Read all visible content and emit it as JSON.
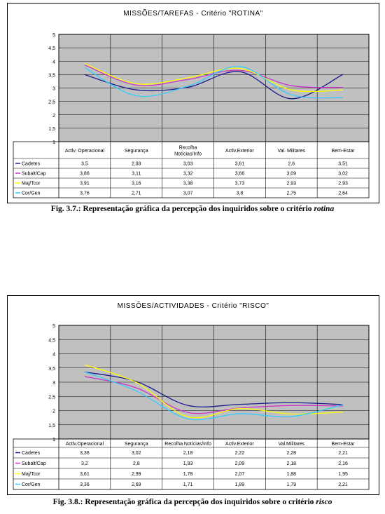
{
  "figures": [
    {
      "caption": {
        "prefix": "Fig. 3.7.: Representação gráfica da percepção dos inquiridos sobre o critério ",
        "italic": "rotina"
      }
    },
    {
      "caption": {
        "prefix": "Fig. 3.8.: Representação gráfica da percepção dos inquiridos sobre o critério ",
        "italic": "risco"
      }
    }
  ],
  "chart_data": [
    {
      "type": "line",
      "title": "MISSÕES/TAREFAS - Critério \"ROTINA\"",
      "categories": [
        "Actlv. Operacional",
        "Segurança",
        "Recolha Notícias/Info",
        "Actlv.Exterior",
        "Val. Militares",
        "Bem-Estar"
      ],
      "category_lines": [
        [
          "Actlv. Operacional"
        ],
        [
          "Segurança"
        ],
        [
          "Recolha",
          "Notícias/Info"
        ],
        [
          "Actlv.Exterior"
        ],
        [
          "Val. Militares"
        ],
        [
          "Bem-Estar"
        ]
      ],
      "series": [
        {
          "name": "Cadetes",
          "color": "#1a1a8c",
          "values": [
            3.5,
            2.93,
            3.03,
            3.61,
            2.6,
            3.51
          ],
          "labels": [
            "3,5",
            "2,93",
            "3,03",
            "3,61",
            "2,6",
            "3,51"
          ]
        },
        {
          "name": "Subalt/Cap",
          "color": "#cc33cc",
          "values": [
            3.86,
            3.11,
            3.32,
            3.66,
            3.09,
            3.02
          ],
          "labels": [
            "3,86",
            "3,11",
            "3,32",
            "3,66",
            "3,09",
            "3,02"
          ]
        },
        {
          "name": "Maj/Tcor",
          "color": "#ffff00",
          "values": [
            3.91,
            3.16,
            3.38,
            3.73,
            2.93,
            2.93
          ],
          "labels": [
            "3,91",
            "3,16",
            "3,38",
            "3,73",
            "2,93",
            "2,93"
          ]
        },
        {
          "name": "Cor/Gen",
          "color": "#33ccff",
          "values": [
            3.76,
            2.71,
            3.07,
            3.8,
            2.75,
            2.64
          ],
          "labels": [
            "3,76",
            "2,71",
            "3,07",
            "3,8",
            "2,75",
            "2,64"
          ]
        }
      ],
      "yticks": [
        "1",
        "1,5",
        "2",
        "2,5",
        "3",
        "3,5",
        "4",
        "4,5",
        "5"
      ],
      "ylim": [
        1,
        5
      ],
      "grid": true,
      "plot_background": "#c0c0c0"
    },
    {
      "type": "line",
      "title": "MISSÕES/ACTIVIDADES - Critério \"RISCO\"",
      "categories": [
        "Actlv.Operacional",
        "Segurança",
        "Recolha Notícias/Info",
        "Actlv.Exterior",
        "Val.Militares",
        "Bem-Estar"
      ],
      "category_lines": [
        [
          "Actlv.Operacional"
        ],
        [
          "Segurança"
        ],
        [
          "Recolha Notícias/Info"
        ],
        [
          "Actlv.Exterior"
        ],
        [
          "Val.Militares"
        ],
        [
          "Bem-Estar"
        ]
      ],
      "series": [
        {
          "name": "Cadetes",
          "color": "#1a1a8c",
          "values": [
            3.36,
            3.02,
            2.18,
            2.22,
            2.28,
            2.21
          ],
          "labels": [
            "3,36",
            "3,02",
            "2,18",
            "2,22",
            "2,28",
            "2,21"
          ]
        },
        {
          "name": "Subalt/Cap",
          "color": "#cc33cc",
          "values": [
            3.2,
            2.8,
            1.93,
            2.09,
            2.18,
            2.16
          ],
          "labels": [
            "3,2",
            "2,8",
            "1,93",
            "2,09",
            "2,18",
            "2,16"
          ]
        },
        {
          "name": "Maj/Tcor",
          "color": "#ffff00",
          "values": [
            3.61,
            2.99,
            1.78,
            2.07,
            1.88,
            1.95
          ],
          "labels": [
            "3,61",
            "2,99",
            "1,78",
            "2,07",
            "1,88",
            "1,95"
          ]
        },
        {
          "name": "Cor/Gen",
          "color": "#33ccff",
          "values": [
            3.36,
            2.69,
            1.71,
            1.89,
            1.79,
            2.21
          ],
          "labels": [
            "3,36",
            "2,69",
            "1,71",
            "1,89",
            "1,79",
            "2,21"
          ]
        }
      ],
      "yticks": [
        "1",
        "1,5",
        "2",
        "2,5",
        "3",
        "3,5",
        "4",
        "4,5",
        "5"
      ],
      "ylim": [
        1,
        5
      ],
      "grid": true,
      "plot_background": "#c0c0c0"
    }
  ]
}
